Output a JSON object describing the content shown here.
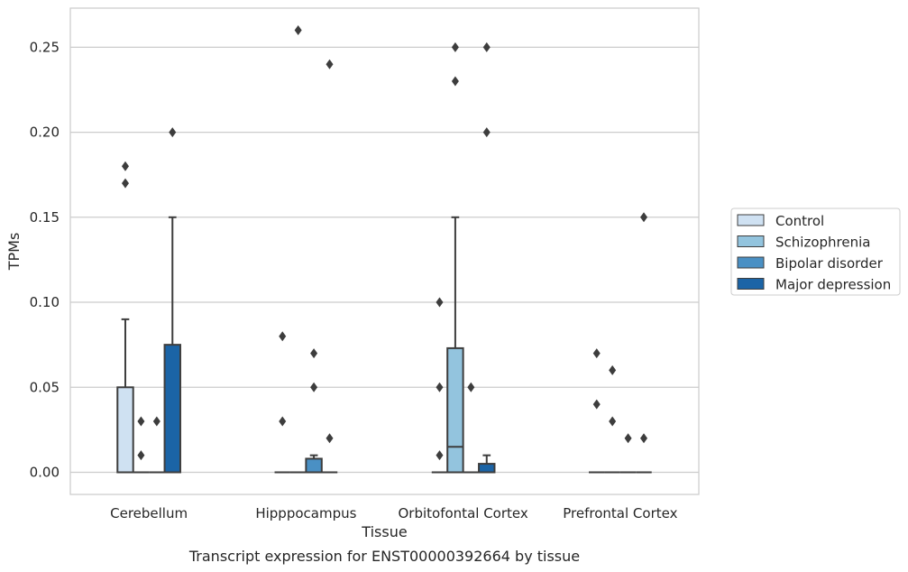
{
  "caption": "Transcript expression for ENST00000392664 by tissue",
  "chart_data": {
    "type": "box",
    "xlabel": "Tissue",
    "ylabel": "TPMs",
    "ylim": [
      -0.013,
      0.273
    ],
    "yticks": [
      0.0,
      0.05,
      0.1,
      0.15,
      0.2,
      0.25
    ],
    "ytick_labels": [
      "0.00",
      "0.05",
      "0.10",
      "0.15",
      "0.20",
      "0.25"
    ],
    "grid": "horizontal",
    "legend_position": "right",
    "categories": [
      "Cerebellum",
      "Hipppocampus",
      "Orbitofontal Cortex",
      "Prefrontal Cortex"
    ],
    "series": [
      {
        "name": "Control",
        "color": "#cfe1f2",
        "boxes": [
          {
            "q1": 0.0,
            "median": 0.0,
            "q3": 0.05,
            "whisker_low": 0.0,
            "whisker_high": 0.09,
            "outliers": [
              0.17,
              0.18
            ]
          },
          {
            "q1": 0.0,
            "median": 0.0,
            "q3": 0.0,
            "whisker_low": 0.0,
            "whisker_high": 0.0,
            "outliers": [
              0.03,
              0.08
            ]
          },
          {
            "q1": 0.0,
            "median": 0.0,
            "q3": 0.0,
            "whisker_low": 0.0,
            "whisker_high": 0.0,
            "outliers": [
              0.01,
              0.05,
              0.1
            ]
          },
          {
            "q1": 0.0,
            "median": 0.0,
            "q3": 0.0,
            "whisker_low": 0.0,
            "whisker_high": 0.0,
            "outliers": [
              0.04,
              0.07
            ]
          }
        ]
      },
      {
        "name": "Schizophrenia",
        "color": "#93c4de",
        "boxes": [
          {
            "q1": 0.0,
            "median": 0.0,
            "q3": 0.0,
            "whisker_low": 0.0,
            "whisker_high": 0.0,
            "outliers": [
              0.01,
              0.03
            ]
          },
          {
            "q1": 0.0,
            "median": 0.0,
            "q3": 0.0,
            "whisker_low": 0.0,
            "whisker_high": 0.0,
            "outliers": [
              0.26
            ]
          },
          {
            "q1": 0.0,
            "median": 0.015,
            "q3": 0.073,
            "whisker_low": 0.0,
            "whisker_high": 0.15,
            "outliers": [
              0.23,
              0.25
            ]
          },
          {
            "q1": 0.0,
            "median": 0.0,
            "q3": 0.0,
            "whisker_low": 0.0,
            "whisker_high": 0.0,
            "outliers": [
              0.03,
              0.06
            ]
          }
        ]
      },
      {
        "name": "Bipolar disorder",
        "color": "#4a90c4",
        "boxes": [
          {
            "q1": 0.0,
            "median": 0.0,
            "q3": 0.0,
            "whisker_low": 0.0,
            "whisker_high": 0.0,
            "outliers": [
              0.03
            ]
          },
          {
            "q1": 0.0,
            "median": 0.0,
            "q3": 0.008,
            "whisker_low": 0.0,
            "whisker_high": 0.01,
            "outliers": [
              0.05,
              0.07
            ]
          },
          {
            "q1": 0.0,
            "median": 0.0,
            "q3": 0.0,
            "whisker_low": 0.0,
            "whisker_high": 0.0,
            "outliers": [
              0.05
            ]
          },
          {
            "q1": 0.0,
            "median": 0.0,
            "q3": 0.0,
            "whisker_low": 0.0,
            "whisker_high": 0.0,
            "outliers": [
              0.02
            ]
          }
        ]
      },
      {
        "name": "Major depression",
        "color": "#1b64a6",
        "boxes": [
          {
            "q1": 0.0,
            "median": 0.0,
            "q3": 0.075,
            "whisker_low": 0.0,
            "whisker_high": 0.15,
            "outliers": [
              0.2
            ]
          },
          {
            "q1": 0.0,
            "median": 0.0,
            "q3": 0.0,
            "whisker_low": 0.0,
            "whisker_high": 0.0,
            "outliers": [
              0.02,
              0.24
            ]
          },
          {
            "q1": 0.0,
            "median": 0.0,
            "q3": 0.005,
            "whisker_low": 0.0,
            "whisker_high": 0.01,
            "outliers": [
              0.2,
              0.25
            ]
          },
          {
            "q1": 0.0,
            "median": 0.0,
            "q3": 0.0,
            "whisker_low": 0.0,
            "whisker_high": 0.0,
            "outliers": [
              0.02,
              0.15
            ]
          }
        ]
      }
    ]
  }
}
